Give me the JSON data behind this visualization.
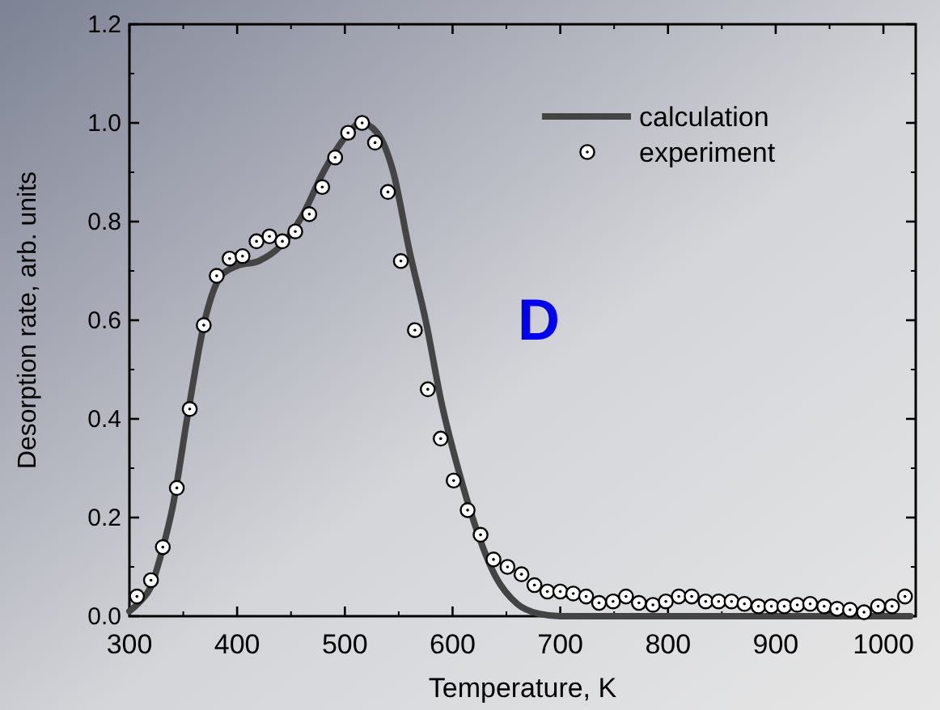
{
  "chart_data": {
    "type": "line",
    "xlabel": "Temperature, K",
    "ylabel": "Desorption rate, arb. units",
    "xlim": [
      300,
      1030
    ],
    "ylim": [
      0,
      1.2
    ],
    "xticks": [
      300,
      400,
      500,
      600,
      700,
      800,
      900,
      1000
    ],
    "yticks": [
      {
        "value": 0,
        "label": "0.0"
      },
      {
        "value": 0.2,
        "label": "0.2"
      },
      {
        "value": 0.4,
        "label": "0.4"
      },
      {
        "value": 0.6,
        "label": "0.6"
      },
      {
        "value": 0.8,
        "label": "0.8"
      },
      {
        "value": 1,
        "label": "1.0"
      },
      {
        "value": 1.2,
        "label": "1.2"
      }
    ],
    "grid": false,
    "legend": "top right",
    "annotations": [
      "D"
    ],
    "series": [
      {
        "name": "calculation",
        "color": "#444444",
        "line_style": "solid",
        "x": [
          300,
          310,
          320,
          330,
          340,
          355,
          370,
          385,
          400,
          420,
          440,
          460,
          480,
          500,
          515,
          530,
          545,
          560,
          575,
          590,
          605,
          620,
          640,
          660,
          680,
          700,
          750,
          850,
          950,
          1025
        ],
        "values": [
          0.01,
          0.03,
          0.06,
          0.13,
          0.22,
          0.42,
          0.6,
          0.69,
          0.71,
          0.72,
          0.75,
          0.81,
          0.9,
          0.97,
          1.0,
          0.98,
          0.9,
          0.74,
          0.6,
          0.43,
          0.3,
          0.19,
          0.08,
          0.025,
          0.005,
          0,
          0,
          0,
          0,
          0
        ]
      },
      {
        "name": "experiment",
        "type": "scatter",
        "color": "#ffffff",
        "marker": "circle",
        "x": [
          307,
          320,
          331,
          344,
          356,
          369,
          381,
          393,
          405,
          418,
          430,
          442,
          454,
          467,
          479,
          491,
          503,
          516,
          528,
          540,
          552,
          565,
          577,
          589,
          601,
          614,
          626,
          638,
          651,
          664,
          676,
          688,
          700,
          712,
          724,
          736,
          749,
          761,
          773,
          786,
          798,
          810,
          822,
          835,
          847,
          859,
          871,
          884,
          896,
          908,
          920,
          932,
          945,
          957,
          969,
          982,
          995,
          1008,
          1020
        ],
        "values": [
          0.04,
          0.073,
          0.14,
          0.26,
          0.42,
          0.59,
          0.69,
          0.725,
          0.73,
          0.76,
          0.77,
          0.76,
          0.78,
          0.815,
          0.87,
          0.93,
          0.98,
          1.0,
          0.96,
          0.86,
          0.72,
          0.58,
          0.46,
          0.36,
          0.275,
          0.215,
          0.165,
          0.115,
          0.1,
          0.085,
          0.063,
          0.05,
          0.05,
          0.046,
          0.04,
          0.027,
          0.03,
          0.04,
          0.027,
          0.023,
          0.03,
          0.04,
          0.04,
          0.03,
          0.03,
          0.03,
          0.025,
          0.02,
          0.02,
          0.02,
          0.023,
          0.025,
          0.02,
          0.015,
          0.013,
          0.008,
          0.02,
          0.02,
          0.04
        ]
      }
    ]
  }
}
